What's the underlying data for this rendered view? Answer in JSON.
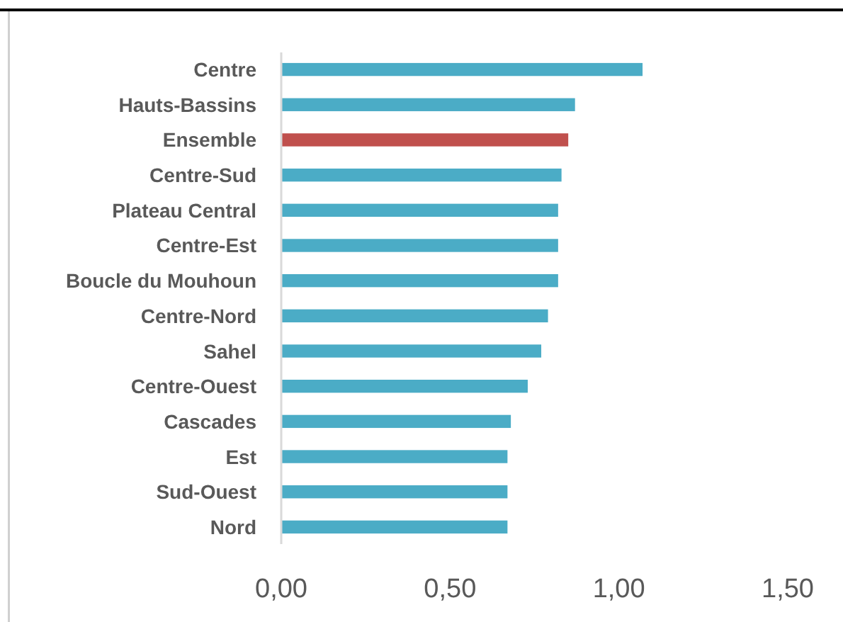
{
  "chart_data": {
    "type": "bar",
    "orientation": "horizontal",
    "categories": [
      "Centre",
      "Hauts-Bassins",
      "Ensemble",
      "Centre-Sud",
      "Plateau Central",
      "Centre-Est",
      "Boucle du Mouhoun",
      "Centre-Nord",
      "Sahel",
      "Centre-Ouest",
      "Cascades",
      "Est",
      "Sud-Ouest",
      "Nord"
    ],
    "values": [
      1.07,
      0.87,
      0.85,
      0.83,
      0.82,
      0.82,
      0.82,
      0.79,
      0.77,
      0.73,
      0.68,
      0.67,
      0.67,
      0.67
    ],
    "colors": [
      "#4bacc6",
      "#4bacc6",
      "#c0504d",
      "#4bacc6",
      "#4bacc6",
      "#4bacc6",
      "#4bacc6",
      "#4bacc6",
      "#4bacc6",
      "#4bacc6",
      "#4bacc6",
      "#4bacc6",
      "#4bacc6",
      "#4bacc6"
    ],
    "xlim": [
      0,
      1.5
    ],
    "xticks": [
      {
        "value": 0,
        "label": "0,00"
      },
      {
        "value": 0.5,
        "label": "0,50"
      },
      {
        "value": 1,
        "label": "1,00"
      },
      {
        "value": 1.5,
        "label": "1,50"
      }
    ]
  }
}
